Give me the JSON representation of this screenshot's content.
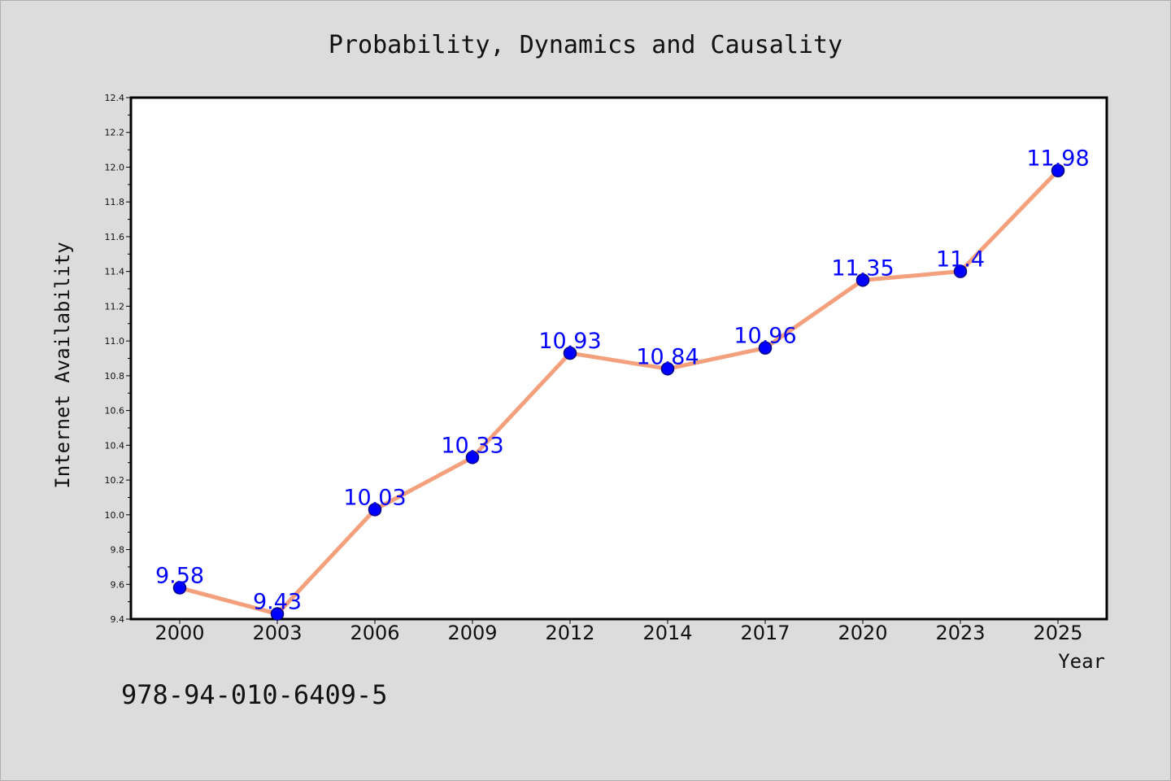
{
  "chart_data": {
    "type": "line",
    "title": "Probability, Dynamics and Causality",
    "xlabel": "Year",
    "ylabel": "Internet Availability",
    "categories": [
      "2000",
      "2003",
      "2006",
      "2009",
      "2012",
      "2014",
      "2017",
      "2020",
      "2023",
      "2025"
    ],
    "series": [
      {
        "values": [
          9.58,
          9.43,
          10.03,
          10.33,
          10.93,
          10.84,
          10.96,
          11.35,
          11.4,
          11.98
        ],
        "data_labels": [
          "9.58",
          "9.43",
          "10.03",
          "10.33",
          "10.93",
          "10.84",
          "10.96",
          "11.35",
          "11.4",
          "11.98"
        ]
      }
    ],
    "ylim": [
      9.4,
      12.4
    ],
    "yticks": [
      "9.4",
      "9.6",
      "9.8",
      "10.0",
      "10.2",
      "10.4",
      "10.6",
      "10.8",
      "11.0",
      "11.2",
      "11.4",
      "11.6",
      "11.8",
      "12.0",
      "12.2",
      "12.4"
    ],
    "grid": false,
    "legend": "none",
    "colors": {
      "line": "#f4a07c",
      "marker": "#0000ff",
      "marker_edge": "#000080",
      "data_label": "#0000ff",
      "figure_background": "#dcdcdc",
      "plot_background": "#ffffff"
    }
  },
  "footnote": "978-94-010-6409-5"
}
